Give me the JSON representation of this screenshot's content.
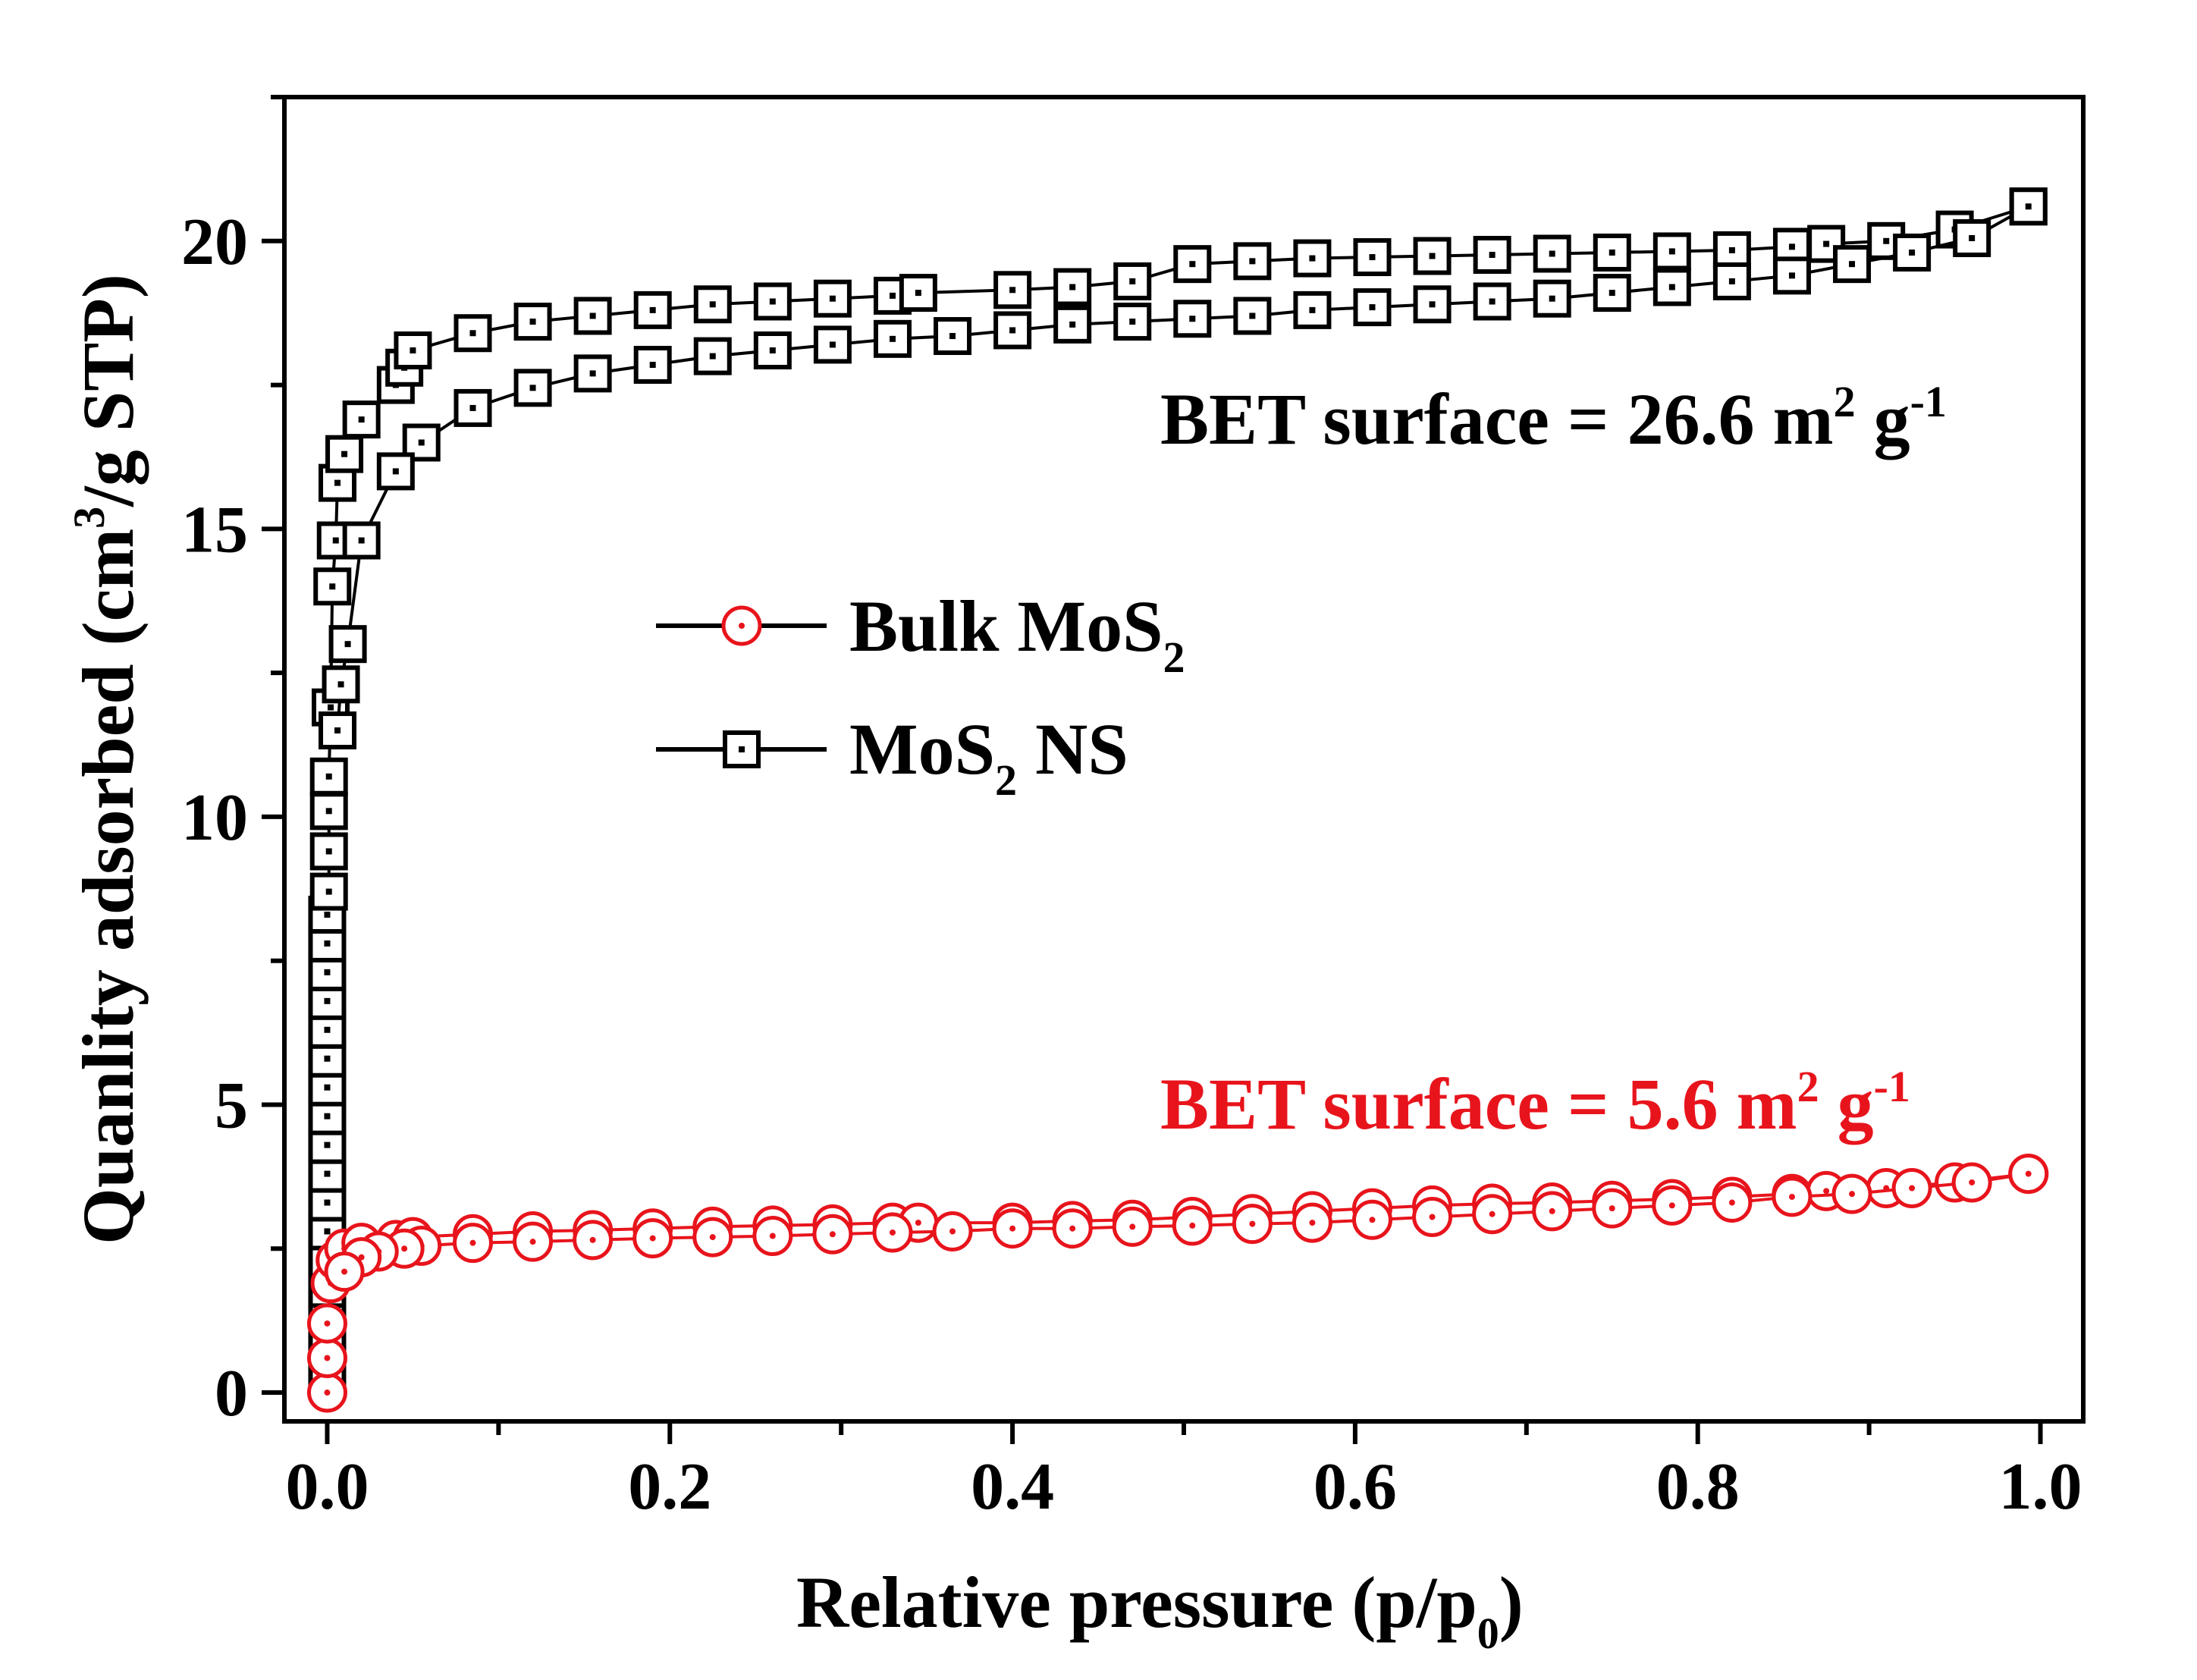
{
  "chart_data": {
    "type": "scatter",
    "xlabel": "Relative pressure (p/p",
    "xlabel_sub": "0",
    "xlabel_end": ")",
    "ylabel_pre": "Quanlity adsorbed (cm",
    "ylabel_sup": "3",
    "ylabel_post": "/g STP)",
    "xlim": [
      -0.025,
      1.025
    ],
    "ylim": [
      -0.5,
      22.5
    ],
    "x_ticks": [
      0.0,
      0.2,
      0.4,
      0.6,
      0.8,
      1.0
    ],
    "x_tick_labels": [
      "0.0",
      "0.2",
      "0.4",
      "0.6",
      "0.8",
      "1.0"
    ],
    "y_ticks": [
      0,
      5,
      10,
      15,
      20
    ],
    "y_tick_labels": [
      "0",
      "5",
      "10",
      "15",
      "20"
    ],
    "legend": {
      "position": "center-left",
      "entries": [
        {
          "name": "Bulk MoS",
          "sub": "2",
          "post": "",
          "marker": "circle",
          "color": "#e8141c"
        },
        {
          "name": "MoS",
          "sub": "2",
          "post": " NS",
          "marker": "square",
          "color": "#000000"
        }
      ]
    },
    "annotations": [
      {
        "pre": "BET surface = 26.6 m",
        "sup1": "2",
        "mid": " g",
        "sup2": "-1",
        "color": "#000000"
      },
      {
        "pre": "BET surface = 5.6 m",
        "sup1": "2",
        "mid": " g",
        "sup2": "-1",
        "color": "#e8141c"
      }
    ],
    "series": [
      {
        "name": "MoS2 NS adsorption",
        "marker": "square",
        "color": "#000000",
        "x": [
          0.0,
          0.0,
          0.0,
          0.0,
          0.0,
          0.0,
          0.0,
          0.0,
          0.0,
          0.0,
          0.0,
          0.0,
          0.0,
          0.0,
          0.0,
          0.0,
          0.0,
          0.001,
          0.001,
          0.001,
          0.001,
          0.002,
          0.003,
          0.005,
          0.006,
          0.01,
          0.02,
          0.04,
          0.045,
          0.05,
          0.085,
          0.12,
          0.155,
          0.19,
          0.225,
          0.26,
          0.295,
          0.33,
          0.345,
          0.4,
          0.435,
          0.47,
          0.505,
          0.54,
          0.575,
          0.61,
          0.645,
          0.68,
          0.715,
          0.75,
          0.785,
          0.82,
          0.855,
          0.875,
          0.91,
          0.95,
          0.993
        ],
        "y": [
          0.3,
          0.8,
          1.3,
          1.8,
          2.3,
          2.8,
          3.3,
          3.8,
          4.3,
          4.8,
          5.3,
          5.8,
          6.3,
          6.8,
          7.3,
          7.8,
          8.3,
          8.7,
          9.4,
          10.1,
          10.7,
          11.9,
          14.0,
          14.8,
          15.8,
          16.3,
          16.9,
          17.5,
          17.8,
          18.1,
          18.4,
          18.6,
          18.7,
          18.8,
          18.9,
          18.95,
          19.0,
          19.05,
          19.1,
          19.15,
          19.2,
          19.3,
          19.6,
          19.65,
          19.7,
          19.72,
          19.74,
          19.76,
          19.78,
          19.8,
          19.82,
          19.84,
          19.9,
          19.95,
          20.0,
          20.2,
          20.6
        ]
      },
      {
        "name": "MoS2 NS desorption",
        "marker": "square",
        "color": "#000000",
        "x": [
          0.993,
          0.96,
          0.925,
          0.89,
          0.855,
          0.82,
          0.785,
          0.75,
          0.715,
          0.68,
          0.645,
          0.61,
          0.575,
          0.54,
          0.505,
          0.47,
          0.435,
          0.4,
          0.365,
          0.33,
          0.295,
          0.26,
          0.225,
          0.19,
          0.155,
          0.12,
          0.085,
          0.055,
          0.04,
          0.02,
          0.012,
          0.008,
          0.006
        ],
        "y": [
          20.6,
          20.05,
          19.8,
          19.6,
          19.4,
          19.3,
          19.2,
          19.1,
          19.0,
          18.95,
          18.9,
          18.85,
          18.8,
          18.7,
          18.65,
          18.6,
          18.55,
          18.45,
          18.35,
          18.3,
          18.2,
          18.1,
          18.0,
          17.85,
          17.7,
          17.45,
          17.1,
          16.5,
          16.0,
          14.8,
          13.0,
          12.3,
          11.5
        ]
      },
      {
        "name": "Bulk MoS2 adsorption",
        "marker": "circle",
        "color": "#e8141c",
        "x": [
          0.0,
          0.0,
          0.0,
          0.002,
          0.005,
          0.01,
          0.02,
          0.04,
          0.05,
          0.085,
          0.12,
          0.155,
          0.19,
          0.225,
          0.26,
          0.295,
          0.33,
          0.345,
          0.4,
          0.435,
          0.47,
          0.505,
          0.54,
          0.575,
          0.61,
          0.645,
          0.68,
          0.715,
          0.75,
          0.785,
          0.82,
          0.855,
          0.875,
          0.91,
          0.95,
          0.993
        ],
        "y": [
          0.0,
          0.6,
          1.2,
          1.9,
          2.3,
          2.5,
          2.6,
          2.65,
          2.7,
          2.75,
          2.8,
          2.82,
          2.85,
          2.88,
          2.9,
          2.92,
          2.95,
          2.95,
          2.95,
          2.98,
          3.0,
          3.05,
          3.1,
          3.15,
          3.2,
          3.25,
          3.28,
          3.3,
          3.33,
          3.36,
          3.4,
          3.45,
          3.5,
          3.55,
          3.65,
          3.8
        ]
      },
      {
        "name": "Bulk MoS2 desorption",
        "marker": "circle",
        "color": "#e8141c",
        "x": [
          0.993,
          0.96,
          0.925,
          0.89,
          0.855,
          0.82,
          0.785,
          0.75,
          0.715,
          0.68,
          0.645,
          0.61,
          0.575,
          0.54,
          0.505,
          0.47,
          0.435,
          0.4,
          0.365,
          0.33,
          0.295,
          0.26,
          0.225,
          0.19,
          0.155,
          0.12,
          0.085,
          0.055,
          0.045,
          0.03,
          0.02,
          0.01
        ],
        "y": [
          3.8,
          3.65,
          3.55,
          3.45,
          3.4,
          3.3,
          3.25,
          3.2,
          3.15,
          3.1,
          3.05,
          3.0,
          2.95,
          2.93,
          2.9,
          2.88,
          2.85,
          2.85,
          2.8,
          2.78,
          2.75,
          2.72,
          2.7,
          2.68,
          2.65,
          2.62,
          2.6,
          2.55,
          2.5,
          2.45,
          2.35,
          2.1
        ]
      }
    ]
  }
}
